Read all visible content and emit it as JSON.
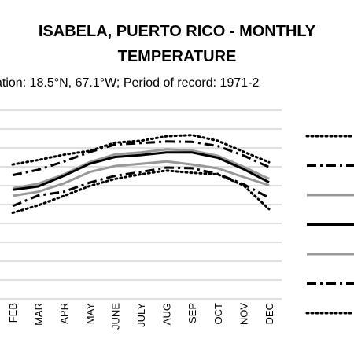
{
  "chart_data": {
    "type": "line",
    "title_lines": [
      "ISABELA, PUERTO RICO - MONTHLY",
      "TEMPERATURE"
    ],
    "subtitle": "ation: 18.5°N, 67.1°W; Period of record: 1971-2",
    "categories": [
      "FEB",
      "MAR",
      "APR",
      "MAY",
      "JUNE",
      "JULY",
      "AUG",
      "SEP",
      "OCT",
      "NOV",
      "DEC"
    ],
    "ylim": [
      50,
      100
    ],
    "grid": true,
    "legend_position": "right",
    "series": [
      {
        "style": "dotted",
        "color": "#000000",
        "values": [
          85.6,
          86.8,
          88.2,
          89.2,
          91.4,
          91.9,
          93.1,
          93.4,
          91.9,
          89.0,
          86.2
        ]
      },
      {
        "style": "dashdot",
        "color": "#000000",
        "values": [
          82.8,
          84.2,
          86.4,
          88.9,
          90.9,
          91.3,
          91.7,
          91.6,
          90.5,
          88.0,
          84.9
        ]
      },
      {
        "style": "solid",
        "color": "#999999",
        "values": [
          79.3,
          80.5,
          83.0,
          86.2,
          88.3,
          88.8,
          89.6,
          89.3,
          87.9,
          85.0,
          81.8
        ]
      },
      {
        "style": "solid",
        "color": "#000000",
        "values": [
          78.9,
          79.8,
          82.6,
          85.8,
          87.6,
          88.1,
          88.8,
          88.8,
          87.4,
          84.4,
          80.9
        ]
      },
      {
        "style": "solid",
        "color": "#999999",
        "values": [
          77.3,
          78.4,
          80.6,
          83.6,
          85.2,
          85.8,
          86.4,
          85.6,
          84.6,
          82.3,
          80.1
        ]
      },
      {
        "style": "dashdot",
        "color": "#000000",
        "values": [
          74.6,
          77.4,
          78.4,
          80.8,
          82.6,
          83.6,
          84.8,
          84.6,
          83.1,
          80.4,
          76.8
        ]
      },
      {
        "style": "dotted",
        "color": "#000000",
        "values": [
          72.8,
          74.8,
          77.3,
          79.9,
          81.8,
          83.0,
          84.0,
          83.4,
          83.0,
          80.1,
          73.8
        ]
      }
    ]
  }
}
